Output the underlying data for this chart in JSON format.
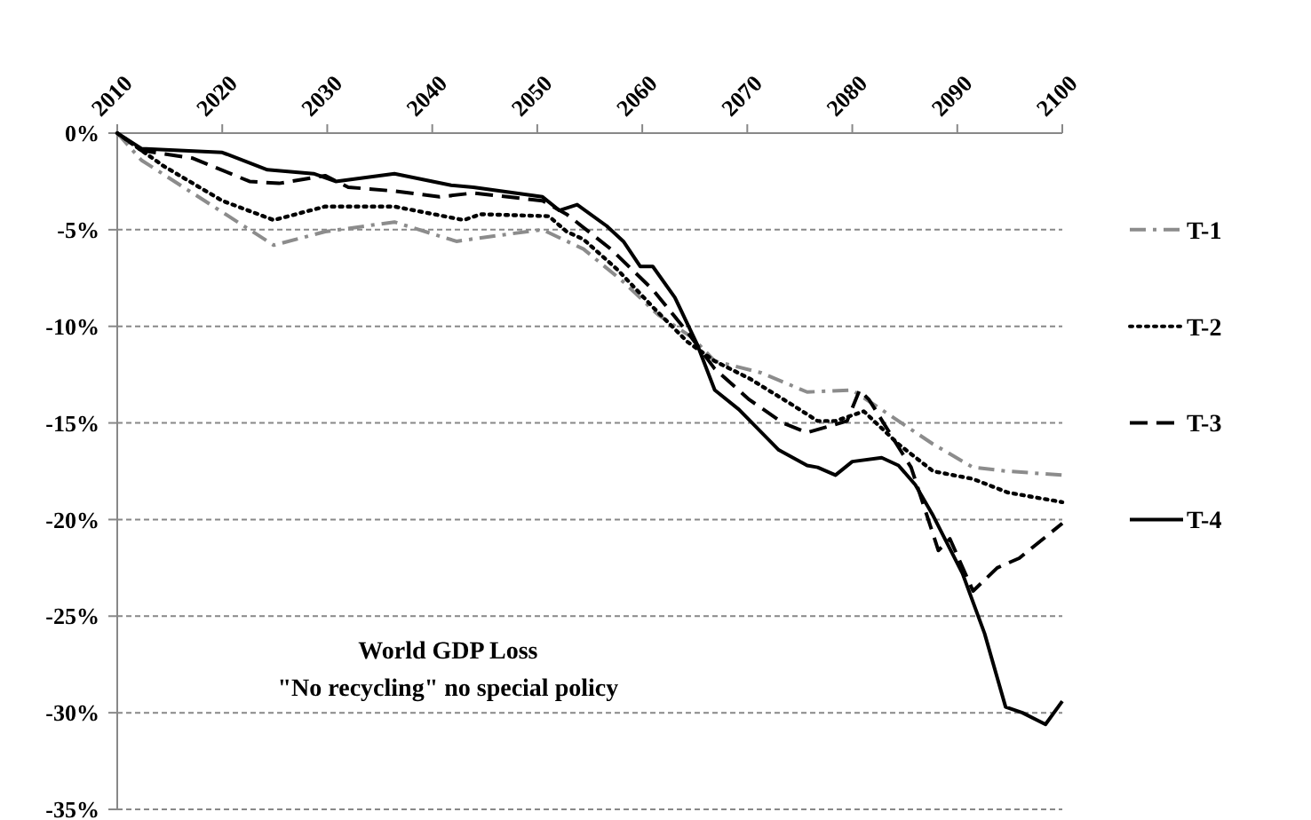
{
  "chart_data": {
    "type": "line",
    "title": "World GDP Loss",
    "subtitle": "\"No recycling\" no special policy",
    "xlim": [
      2010,
      2100
    ],
    "xticks": [
      2010,
      2020,
      2030,
      2040,
      2050,
      2060,
      2070,
      2080,
      2090,
      2100
    ],
    "ylim": [
      -35,
      0
    ],
    "yticks": [
      {
        "value": -35,
        "label": "-35%"
      },
      {
        "value": -30,
        "label": "-30%"
      },
      {
        "value": -25,
        "label": "-25%"
      },
      {
        "value": -20,
        "label": "-20%"
      },
      {
        "value": -15,
        "label": "-15%"
      },
      {
        "value": -10,
        "label": "-10%"
      },
      {
        "value": -5,
        "label": "-5%"
      },
      {
        "value": 0,
        "label": "0%"
      }
    ],
    "grid": "y",
    "legend": "right",
    "series": [
      {
        "name": "T-1",
        "color": "#8c8c8c",
        "line_style": "dashdot",
        "x": [
          2010,
          2012.3,
          2024.9,
          2029.8,
          2036.4,
          2042.3,
          2046.2,
          2050.5,
          2054.4,
          2058.2,
          2061.5,
          2064.8,
          2066.9,
          2071.3,
          2075.7,
          2080,
          2084.4,
          2087.7,
          2091.5,
          2094.8,
          2100
        ],
        "values": [
          0,
          -1.4,
          -5.8,
          -5.1,
          -4.6,
          -5.6,
          -5.3,
          -5,
          -6,
          -7.7,
          -9.4,
          -10.6,
          -11.8,
          -12.4,
          -13.4,
          -13.3,
          -14.9,
          -16.1,
          -17.3,
          -17.5,
          -17.7
        ]
      },
      {
        "name": "T-2",
        "color": "#000000",
        "line_style": "dotted",
        "x": [
          2010,
          2014.4,
          2020,
          2024.9,
          2029.8,
          2036.4,
          2043,
          2044.6,
          2051.1,
          2052.8,
          2054.4,
          2057.7,
          2061,
          2064.3,
          2066.9,
          2070.2,
          2074.1,
          2076.7,
          2078.4,
          2081.1,
          2084.4,
          2087.7,
          2091.5,
          2094.8,
          2100
        ],
        "values": [
          0,
          -1.7,
          -3.5,
          -4.5,
          -3.8,
          -3.8,
          -4.5,
          -4.2,
          -4.3,
          -5.1,
          -5.5,
          -7.1,
          -9,
          -10.8,
          -11.8,
          -12.7,
          -14,
          -14.9,
          -14.9,
          -14.4,
          -16.1,
          -17.5,
          -17.9,
          -18.6,
          -19.1
        ]
      },
      {
        "name": "T-3",
        "color": "#000000",
        "line_style": "dashed",
        "x": [
          2010,
          2012.3,
          2017.2,
          2022.6,
          2025.4,
          2029.8,
          2032,
          2036.4,
          2040.7,
          2043.9,
          2050.5,
          2052.8,
          2057,
          2061,
          2064.3,
          2066.9,
          2070.2,
          2073.4,
          2075.7,
          2079.5,
          2080.7,
          2081.6,
          2085.6,
          2088.2,
          2089.3,
          2091.5,
          2093.8,
          2095.9,
          2100
        ],
        "values": [
          0,
          -0.9,
          -1.3,
          -2.5,
          -2.6,
          -2.2,
          -2.8,
          -3,
          -3.3,
          -3.1,
          -3.5,
          -4.2,
          -6,
          -8.1,
          -10.3,
          -12.2,
          -13.8,
          -15,
          -15.5,
          -14.9,
          -13.3,
          -13.8,
          -17.3,
          -21.6,
          -21,
          -23.7,
          -22.5,
          -22,
          -20.2
        ]
      },
      {
        "name": "T-4",
        "color": "#000000",
        "line_style": "solid",
        "x": [
          2010,
          2012.3,
          2020,
          2024.3,
          2028.7,
          2030.8,
          2036.4,
          2041.8,
          2043.9,
          2050.5,
          2052.1,
          2053.8,
          2056.6,
          2058.2,
          2059.8,
          2061,
          2063.1,
          2065.2,
          2066.9,
          2069.2,
          2073,
          2075.7,
          2076.7,
          2078.4,
          2080,
          2082.8,
          2084.4,
          2086,
          2087.7,
          2090.5,
          2092.6,
          2094.6,
          2096.2,
          2098.4,
          2100
        ],
        "values": [
          0,
          -0.8,
          -1,
          -1.9,
          -2.1,
          -2.5,
          -2.1,
          -2.7,
          -2.8,
          -3.3,
          -4,
          -3.7,
          -4.8,
          -5.6,
          -6.9,
          -6.9,
          -8.5,
          -10.9,
          -13.3,
          -14.3,
          -16.4,
          -17.2,
          -17.3,
          -17.7,
          -17,
          -16.8,
          -17.2,
          -18.2,
          -19.8,
          -22.8,
          -25.9,
          -29.7,
          -30,
          -30.6,
          -29.4
        ]
      }
    ]
  }
}
